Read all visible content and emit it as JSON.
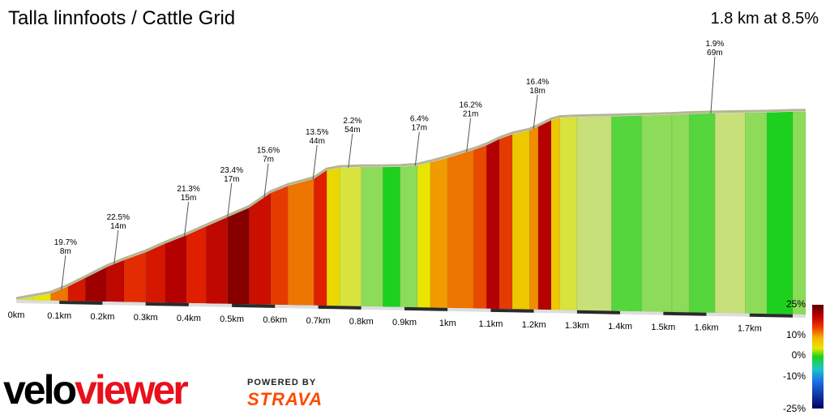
{
  "header": {
    "title": "Talla linnfoots / Cattle Grid",
    "summary": "1.8 km at 8.5%"
  },
  "branding": {
    "logo_text_left": "velo",
    "logo_text_right": "viewer",
    "powered_by": "POWERED BY",
    "strava": "STRAVA",
    "strava_color": "#fc4c02",
    "logo_color_left": "#000000",
    "logo_color_right": "#e8101b"
  },
  "color_scale": {
    "labels": [
      "25%",
      "10%",
      "0%",
      "-10%",
      "-25%"
    ]
  },
  "chart_data": {
    "type": "area",
    "title": "Talla linnfoots / Cattle Grid",
    "xlabel": "",
    "ylabel": "",
    "x_unit": "km",
    "x_ticks": [
      "0km",
      "0.1km",
      "0.2km",
      "0.3km",
      "0.4km",
      "0.5km",
      "0.6km",
      "0.7km",
      "0.8km",
      "0.9km",
      "1km",
      "1.1km",
      "1.2km",
      "1.3km",
      "1.4km",
      "1.5km",
      "1.6km",
      "1.7km"
    ],
    "xlim": [
      0,
      1.83
    ],
    "total_distance_km": 1.8,
    "average_gradient_pct": 8.5,
    "profile": [
      {
        "x": 0.0,
        "y": 0.0,
        "grade": 4
      },
      {
        "x": 0.04,
        "y": 2.0,
        "grade": 5
      },
      {
        "x": 0.08,
        "y": 4.0,
        "grade": 12
      },
      {
        "x": 0.12,
        "y": 8.5,
        "grade": 18
      },
      {
        "x": 0.16,
        "y": 14.0,
        "grade": 22
      },
      {
        "x": 0.21,
        "y": 21.0,
        "grade": 20
      },
      {
        "x": 0.25,
        "y": 25.5,
        "grade": 16
      },
      {
        "x": 0.3,
        "y": 30.5,
        "grade": 18
      },
      {
        "x": 0.345,
        "y": 36.0,
        "grade": 21
      },
      {
        "x": 0.395,
        "y": 41.5,
        "grade": 17
      },
      {
        "x": 0.44,
        "y": 47.0,
        "grade": 20
      },
      {
        "x": 0.49,
        "y": 53.0,
        "grade": 23
      },
      {
        "x": 0.54,
        "y": 59.0,
        "grade": 19
      },
      {
        "x": 0.59,
        "y": 68.5,
        "grade": 15
      },
      {
        "x": 0.63,
        "y": 73.0,
        "grade": 12
      },
      {
        "x": 0.69,
        "y": 77.5,
        "grade": 17
      },
      {
        "x": 0.72,
        "y": 83.0,
        "grade": 6
      },
      {
        "x": 0.75,
        "y": 84.5,
        "grade": 4
      },
      {
        "x": 0.8,
        "y": 85.0,
        "grade": 2
      },
      {
        "x": 0.85,
        "y": 85.0,
        "grade": 0
      },
      {
        "x": 0.89,
        "y": 85.2,
        "grade": 2
      },
      {
        "x": 0.93,
        "y": 86.0,
        "grade": 5
      },
      {
        "x": 0.96,
        "y": 88.0,
        "grade": 10
      },
      {
        "x": 1.0,
        "y": 91.0,
        "grade": 12
      },
      {
        "x": 1.06,
        "y": 96.0,
        "grade": 14
      },
      {
        "x": 1.09,
        "y": 99.0,
        "grade": 21
      },
      {
        "x": 1.12,
        "y": 103.0,
        "grade": 15
      },
      {
        "x": 1.15,
        "y": 106.0,
        "grade": 7
      },
      {
        "x": 1.19,
        "y": 108.5,
        "grade": 11
      },
      {
        "x": 1.21,
        "y": 111.0,
        "grade": 21
      },
      {
        "x": 1.24,
        "y": 115.0,
        "grade": 7
      },
      {
        "x": 1.26,
        "y": 116.5,
        "grade": 4
      },
      {
        "x": 1.3,
        "y": 117.0,
        "grade": 3
      },
      {
        "x": 1.38,
        "y": 117.5,
        "grade": 1
      },
      {
        "x": 1.45,
        "y": 118.0,
        "grade": 2
      },
      {
        "x": 1.52,
        "y": 118.6,
        "grade": 2
      },
      {
        "x": 1.56,
        "y": 119.1,
        "grade": 1
      },
      {
        "x": 1.62,
        "y": 119.5,
        "grade": 3
      },
      {
        "x": 1.69,
        "y": 119.8,
        "grade": 2
      },
      {
        "x": 1.74,
        "y": 120.0,
        "grade": 0
      },
      {
        "x": 1.8,
        "y": 120.5,
        "grade": 2
      },
      {
        "x": 1.83,
        "y": 120.5,
        "grade": 2
      }
    ],
    "ylim": [
      0,
      135
    ],
    "annotations": [
      {
        "grade": "19.7%",
        "length": "8m",
        "x": 0.105
      },
      {
        "grade": "22.5%",
        "length": "14m",
        "x": 0.227
      },
      {
        "grade": "21.3%",
        "length": "15m",
        "x": 0.39
      },
      {
        "grade": "23.4%",
        "length": "17m",
        "x": 0.49
      },
      {
        "grade": "15.6%",
        "length": "7m",
        "x": 0.575
      },
      {
        "grade": "13.5%",
        "length": "44m",
        "x": 0.688
      },
      {
        "grade": "2.2%",
        "length": "54m",
        "x": 0.77
      },
      {
        "grade": "6.4%",
        "length": "17m",
        "x": 0.925
      },
      {
        "grade": "16.2%",
        "length": "21m",
        "x": 1.044
      },
      {
        "grade": "16.4%",
        "length": "18m",
        "x": 1.199
      },
      {
        "grade": "1.9%",
        "length": "69m",
        "x": 1.61
      }
    ]
  }
}
